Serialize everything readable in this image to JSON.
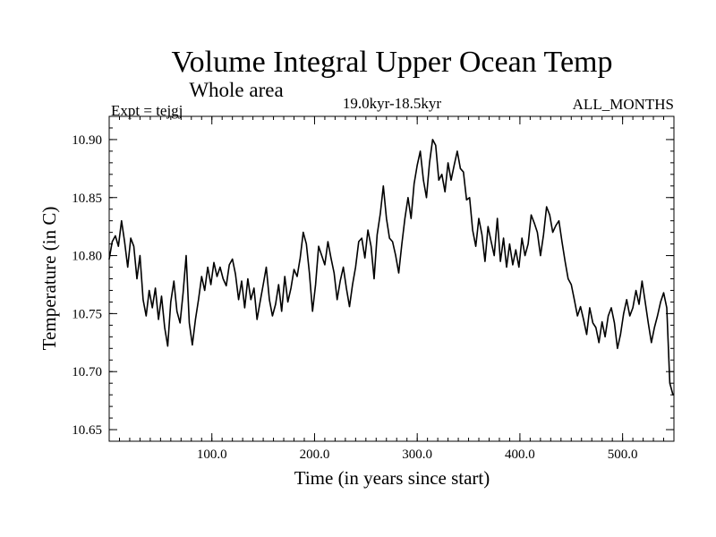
{
  "chart_data": {
    "type": "line",
    "title": "Volume Integral Upper Ocean Temp",
    "subtitle": "Whole area",
    "expt_label": "Expt = tejgj",
    "period_label": "19.0kyr-18.5kyr",
    "months_label": "ALL_MONTHS",
    "xlabel": "Time (in years since start)",
    "ylabel": "Temperature (in C)",
    "xlim": [
      0,
      550
    ],
    "ylim": [
      10.64,
      10.92
    ],
    "x_ticks": [
      100,
      200,
      300,
      400,
      500
    ],
    "x_tick_labels": [
      "100.0",
      "200.0",
      "300.0",
      "400.0",
      "500.0"
    ],
    "y_ticks": [
      10.65,
      10.7,
      10.75,
      10.8,
      10.85,
      10.9
    ],
    "y_tick_labels": [
      "10.65",
      "10.70",
      "10.75",
      "10.80",
      "10.85",
      "10.90"
    ],
    "series": [
      {
        "name": "Volume Integral Upper Ocean Temp",
        "color": "#000000",
        "x": [
          0,
          3,
          6,
          9,
          12,
          15,
          18,
          21,
          24,
          27,
          30,
          33,
          36,
          39,
          42,
          45,
          48,
          51,
          54,
          57,
          60,
          63,
          66,
          69,
          72,
          75,
          78,
          81,
          84,
          87,
          90,
          93,
          96,
          99,
          102,
          105,
          108,
          111,
          114,
          117,
          120,
          123,
          126,
          129,
          132,
          135,
          138,
          141,
          144,
          147,
          150,
          153,
          156,
          159,
          162,
          165,
          168,
          171,
          174,
          177,
          180,
          183,
          186,
          189,
          192,
          195,
          198,
          201,
          204,
          207,
          210,
          213,
          216,
          219,
          222,
          225,
          228,
          231,
          234,
          237,
          240,
          243,
          246,
          249,
          252,
          255,
          258,
          261,
          264,
          267,
          270,
          273,
          276,
          279,
          282,
          285,
          288,
          291,
          294,
          297,
          300,
          303,
          306,
          309,
          312,
          315,
          318,
          321,
          324,
          327,
          330,
          333,
          336,
          339,
          342,
          345,
          348,
          351,
          354,
          357,
          360,
          363,
          366,
          369,
          372,
          375,
          378,
          381,
          384,
          387,
          390,
          393,
          396,
          399,
          402,
          405,
          408,
          411,
          414,
          417,
          420,
          423,
          426,
          429,
          432,
          435,
          438,
          441,
          444,
          447,
          450,
          453,
          456,
          459,
          462,
          465,
          468,
          471,
          474,
          477,
          480,
          483,
          486,
          489,
          492,
          495,
          498,
          501,
          504,
          507,
          510,
          513,
          516,
          519,
          522,
          525,
          528,
          531,
          534,
          537,
          540,
          543,
          546,
          549
        ],
        "values": [
          10.797,
          10.812,
          10.817,
          10.808,
          10.83,
          10.812,
          10.79,
          10.815,
          10.808,
          10.78,
          10.8,
          10.762,
          10.748,
          10.77,
          10.755,
          10.772,
          10.745,
          10.765,
          10.738,
          10.722,
          10.76,
          10.778,
          10.752,
          10.742,
          10.768,
          10.8,
          10.742,
          10.723,
          10.745,
          10.762,
          10.782,
          10.77,
          10.79,
          10.775,
          10.794,
          10.782,
          10.79,
          10.78,
          10.774,
          10.792,
          10.797,
          10.784,
          10.762,
          10.778,
          10.755,
          10.78,
          10.762,
          10.772,
          10.745,
          10.76,
          10.775,
          10.79,
          10.762,
          10.748,
          10.758,
          10.775,
          10.752,
          10.782,
          10.76,
          10.772,
          10.788,
          10.782,
          10.798,
          10.82,
          10.81,
          10.785,
          10.752,
          10.775,
          10.808,
          10.8,
          10.792,
          10.812,
          10.798,
          10.785,
          10.762,
          10.778,
          10.79,
          10.772,
          10.756,
          10.775,
          10.79,
          10.812,
          10.815,
          10.798,
          10.822,
          10.808,
          10.78,
          10.818,
          10.836,
          10.86,
          10.832,
          10.815,
          10.812,
          10.8,
          10.785,
          10.81,
          10.832,
          10.85,
          10.832,
          10.862,
          10.878,
          10.89,
          10.865,
          10.85,
          10.88,
          10.9,
          10.895,
          10.865,
          10.87,
          10.855,
          10.88,
          10.865,
          10.878,
          10.89,
          10.875,
          10.872,
          10.848,
          10.85,
          10.822,
          10.808,
          10.832,
          10.818,
          10.795,
          10.825,
          10.812,
          10.8,
          10.832,
          10.795,
          10.815,
          10.79,
          10.81,
          10.792,
          10.805,
          10.79,
          10.815,
          10.8,
          10.81,
          10.835,
          10.828,
          10.82,
          10.8,
          10.818,
          10.842,
          10.835,
          10.82,
          10.826,
          10.83,
          10.812,
          10.795,
          10.78,
          10.775,
          10.762,
          10.748,
          10.756,
          10.745,
          10.732,
          10.755,
          10.742,
          10.738,
          10.725,
          10.743,
          10.73,
          10.748,
          10.755,
          10.742,
          10.72,
          10.732,
          10.75,
          10.762,
          10.748,
          10.755,
          10.77,
          10.758,
          10.778,
          10.76,
          10.742,
          10.725,
          10.738,
          10.748,
          10.76,
          10.768,
          10.755,
          10.69,
          10.68
        ]
      }
    ]
  }
}
